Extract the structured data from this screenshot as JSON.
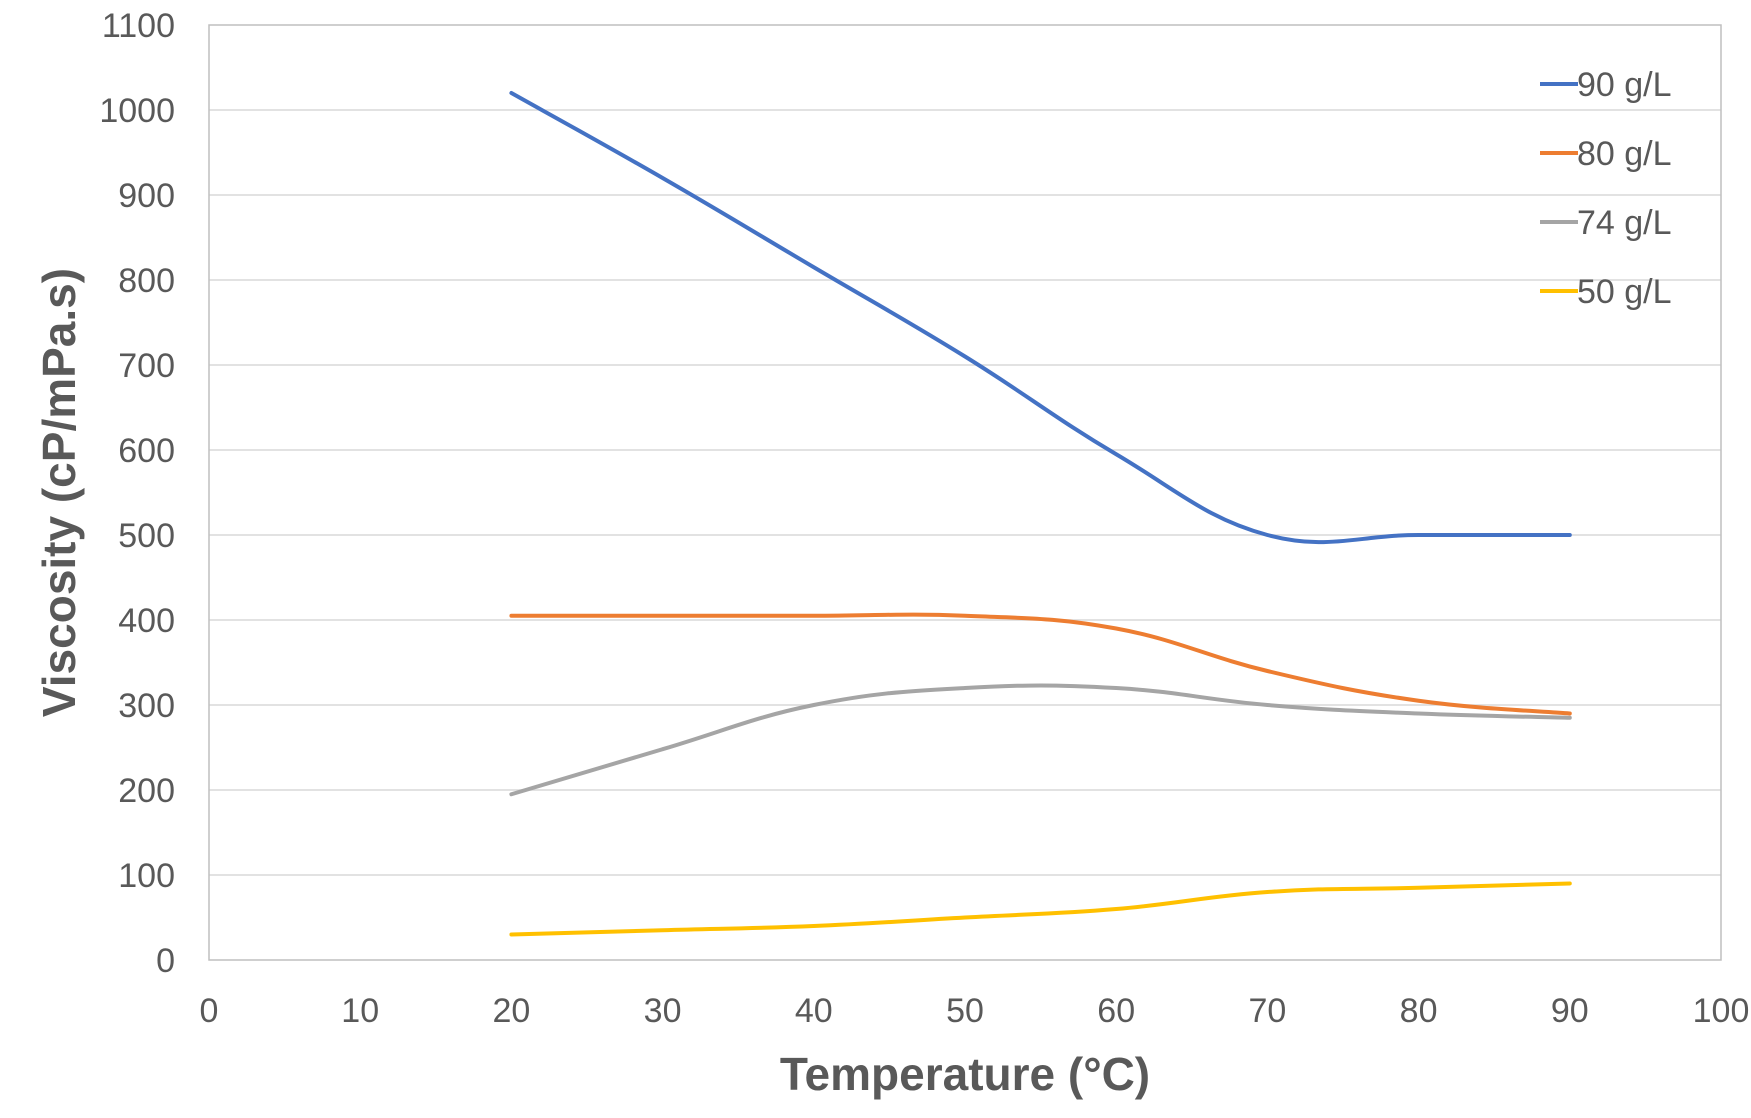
{
  "chart_data": {
    "type": "line",
    "title": "",
    "xlabel": "Temperature (°C)",
    "ylabel": "Viscosity (cP/mPa.s)",
    "xlim": [
      0,
      100
    ],
    "ylim": [
      0,
      1100
    ],
    "x_ticks": [
      0,
      10,
      20,
      30,
      40,
      50,
      60,
      70,
      80,
      90,
      100
    ],
    "y_ticks": [
      0,
      100,
      200,
      300,
      400,
      500,
      600,
      700,
      800,
      900,
      1000,
      1100
    ],
    "grid": "horizontal",
    "legend_position": "top-right",
    "x": [
      20,
      30,
      40,
      50,
      60,
      70,
      80,
      90
    ],
    "series": [
      {
        "name": "90 g/L",
        "color": "#4472C4",
        "values": [
          1020,
          920,
          815,
          710,
          595,
          500,
          500,
          500
        ]
      },
      {
        "name": "80 g/L",
        "color": "#ED7D31",
        "values": [
          405,
          405,
          405,
          405,
          390,
          340,
          305,
          290
        ]
      },
      {
        "name": "74 g/L",
        "color": "#A5A5A5",
        "values": [
          195,
          248,
          300,
          320,
          320,
          300,
          290,
          285
        ]
      },
      {
        "name": "50 g/L",
        "color": "#FFC000",
        "values": [
          30,
          35,
          40,
          50,
          60,
          80,
          85,
          90
        ]
      }
    ]
  }
}
